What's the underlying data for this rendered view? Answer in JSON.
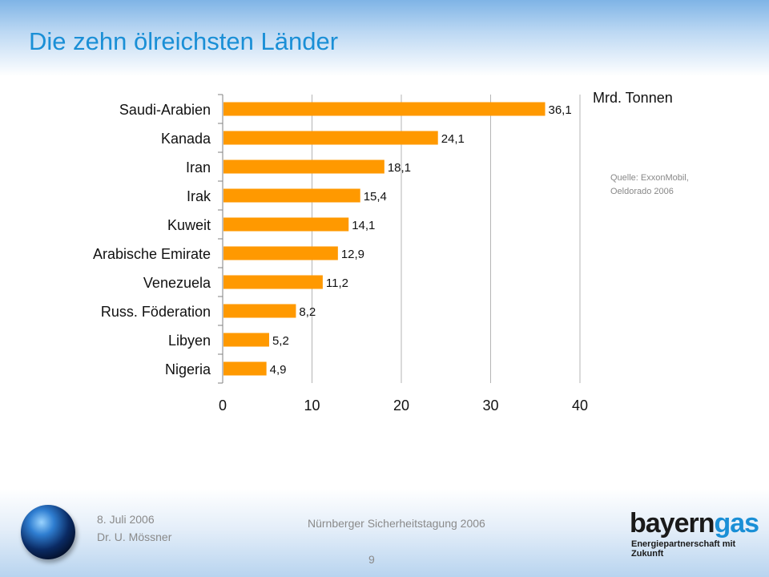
{
  "slide": {
    "title": "Die zehn ölreichsten Länder",
    "unit": "Mrd. Tonnen",
    "source_line1": "Quelle: ExxonMobil,",
    "source_line2": "Oeldorado 2006"
  },
  "footer": {
    "date": "8. Juli 2006",
    "author": "Dr. U. Mössner",
    "event": "Nürnberger Sicherheitstagung 2006",
    "page": "9",
    "brand_part1": "bayern",
    "brand_part2": "gas",
    "claim": "Energiepartnerschaft mit Zukunft"
  },
  "colors": {
    "title": "#1a8fd6",
    "bar": "#ff9900",
    "brand_dark": "#1a1a1a",
    "brand_blue": "#1a8fd6"
  },
  "chart_data": {
    "type": "bar",
    "orientation": "horizontal",
    "categories": [
      "Saudi-Arabien",
      "Kanada",
      "Iran",
      "Irak",
      "Kuweit",
      "Arabische Emirate",
      "Venezuela",
      "Russ. Föderation",
      "Libyen",
      "Nigeria"
    ],
    "values": [
      36.1,
      24.1,
      18.1,
      15.4,
      14.1,
      12.9,
      11.2,
      8.2,
      5.2,
      4.9
    ],
    "value_labels": [
      "36,1",
      "24,1",
      "18,1",
      "15,4",
      "14,1",
      "12,9",
      "11,2",
      "8,2",
      "5,2",
      "4,9"
    ],
    "xlim": [
      0,
      40
    ],
    "xticks": [
      "0",
      "10",
      "20",
      "30",
      "40"
    ],
    "grid": true
  }
}
